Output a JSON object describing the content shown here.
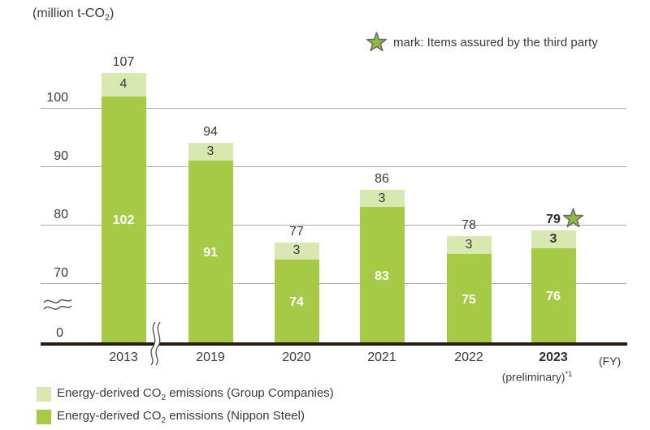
{
  "unit_label": {
    "pre": "(million t-CO",
    "sub": "2",
    "post": ")"
  },
  "assurance_note": {
    "text": "mark: Items assured by the third party"
  },
  "fy_label": "(FY)",
  "y_axis": {
    "ticks": [
      "100",
      "90",
      "80",
      "70"
    ],
    "zero": "0"
  },
  "legend": [
    {
      "pre": "Energy-derived CO",
      "sub": "2",
      "post": " emissions (Group Companies)",
      "color": "#d9e7b0"
    },
    {
      "pre": "Energy-derived CO",
      "sub": "2",
      "post": " emissions (Nippon Steel)",
      "color": "#a6ca46"
    }
  ],
  "colors": {
    "group_companies": "#d9e7b0",
    "nippon_steel": "#a6ca46",
    "star_fill": "#8cbb3e",
    "star_stroke": "#6b6b6b",
    "gridline": "#a9a9a9",
    "baseline": "#241b15",
    "text": "#3a3a3a"
  },
  "chart_data": {
    "type": "bar",
    "stacked": true,
    "title": "(million t-CO2)",
    "ylabel": "(million t-CO2)",
    "xlabel": "(FY)",
    "categories": [
      "2013",
      "2019",
      "2020",
      "2021",
      "2022",
      "2023"
    ],
    "x_sub_labels": [
      null,
      null,
      null,
      null,
      null,
      {
        "text": "(preliminary)",
        "sup": "*1"
      }
    ],
    "series": [
      {
        "name": "Energy-derived CO2 emissions (Group Companies)",
        "values": [
          4,
          3,
          3,
          3,
          3,
          3
        ],
        "color": "#d9e7b0",
        "label_color": "#3a3a3a"
      },
      {
        "name": "Energy-derived CO2 emissions (Nippon Steel)",
        "values": [
          102,
          91,
          74,
          83,
          75,
          76
        ],
        "color": "#a6ca46",
        "label_color": "#ffffff"
      }
    ],
    "totals": [
      107,
      94,
      77,
      86,
      78,
      79
    ],
    "starred_categories": [
      "2023"
    ],
    "bold_categories": [
      "2023"
    ],
    "y_gridlines": [
      100,
      90,
      80,
      70
    ],
    "ylim_display": [
      65,
      110
    ],
    "axis_breaks": {
      "y": true,
      "x": true
    },
    "legend_position": "bottom-left",
    "annotation": "star mark: Items assured by the third party"
  }
}
